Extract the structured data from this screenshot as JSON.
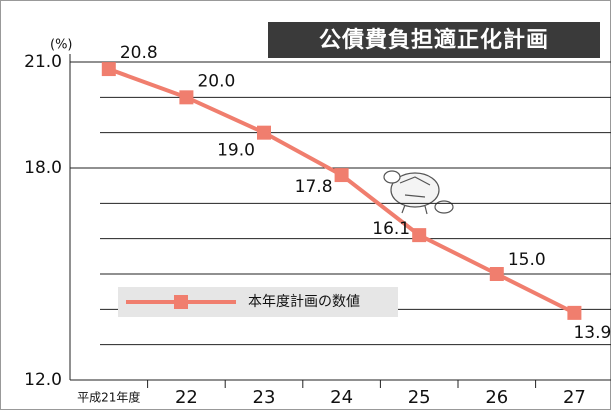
{
  "chart_data": {
    "type": "line",
    "title": "公債費負担適正化計画",
    "y_unit": "(%)",
    "categories": [
      "平成21年度",
      "22",
      "23",
      "24",
      "25",
      "26",
      "27"
    ],
    "series": [
      {
        "name": "本年度計画の数値",
        "color": "#f07e6e",
        "values": [
          20.8,
          20.0,
          19.0,
          17.8,
          16.1,
          15.0,
          13.9
        ],
        "value_labels": [
          "20.8",
          "20.0",
          "19.0",
          "17.8",
          "16.1",
          "15.0",
          "13.9"
        ]
      }
    ],
    "ylim": [
      12,
      21
    ],
    "yticks": [
      {
        "value": 12,
        "label": "12.0"
      },
      {
        "value": 18,
        "label": "18.0"
      },
      {
        "value": 21,
        "label": "21.0"
      }
    ],
    "grid_yticks": [
      13,
      14,
      15,
      16,
      17,
      19,
      20
    ],
    "grid": true
  }
}
